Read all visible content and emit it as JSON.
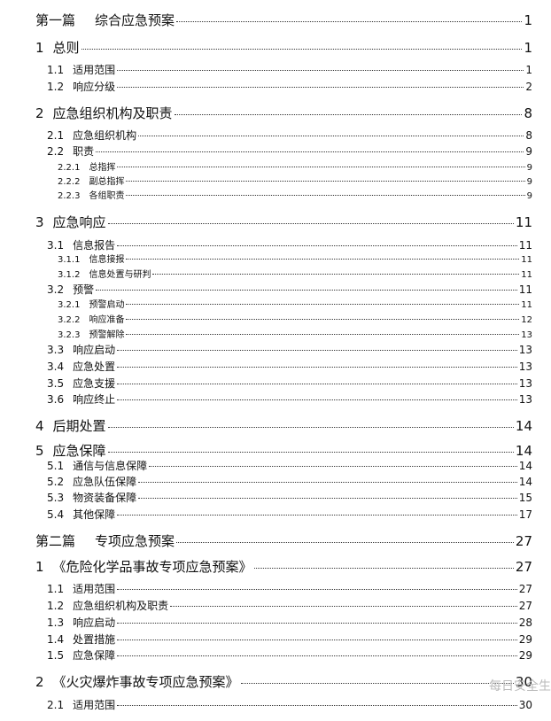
{
  "entries": [
    {
      "number": "第一篇",
      "title": "综合应急预案",
      "page": 1
    },
    {
      "number": "1",
      "title": "总则",
      "page": 1
    },
    {
      "number": "1.1",
      "title": "适用范围",
      "page": 1
    },
    {
      "number": "1.2",
      "title": "响应分级",
      "page": 2
    },
    {
      "number": "2",
      "title": "应急组织机构及职责",
      "page": 8
    },
    {
      "number": "2.1",
      "title": "应急组织机构",
      "page": 8
    },
    {
      "number": "2.2",
      "title": "职责",
      "page": 9
    },
    {
      "number": "2.2.1",
      "title": "总指挥",
      "page": 9
    },
    {
      "number": "2.2.2",
      "title": "副总指挥",
      "page": 9
    },
    {
      "number": "2.2.3",
      "title": "各组职责",
      "page": 9
    },
    {
      "number": "3",
      "title": "应急响应",
      "page": 11
    },
    {
      "number": "3.1",
      "title": "信息报告",
      "page": 11
    },
    {
      "number": "3.1.1",
      "title": "信息接报",
      "page": 11
    },
    {
      "number": "3.1.2",
      "title": "信息处置与研判",
      "page": 11
    },
    {
      "number": "3.2",
      "title": "预警",
      "page": 11
    },
    {
      "number": "3.2.1",
      "title": "预警启动",
      "page": 11
    },
    {
      "number": "3.2.2",
      "title": "响应准备",
      "page": 12
    },
    {
      "number": "3.2.3",
      "title": "预警解除",
      "page": 13
    },
    {
      "number": "3.3",
      "title": "响应启动",
      "page": 13
    },
    {
      "number": "3.4",
      "title": "应急处置",
      "page": 13
    },
    {
      "number": "3.5",
      "title": "应急支援",
      "page": 13
    },
    {
      "number": "3.6",
      "title": "响应终止",
      "page": 13
    },
    {
      "number": "4",
      "title": "后期处置",
      "page": 14
    },
    {
      "number": "5",
      "title": "应急保障",
      "page": 14
    },
    {
      "number": "5.1",
      "title": "通信与信息保障",
      "page": 14
    },
    {
      "number": "5.2",
      "title": "应急队伍保障",
      "page": 14
    },
    {
      "number": "5.3",
      "title": "物资装备保障",
      "page": 15
    },
    {
      "number": "5.4",
      "title": "其他保障",
      "page": 17
    },
    {
      "number": "第二篇",
      "title": "专项应急预案",
      "page": 27
    },
    {
      "number": "1",
      "title": "《危险化学品事故专项应急预案》",
      "page": 27
    },
    {
      "number": "1.1",
      "title": "适用范围",
      "page": 27
    },
    {
      "number": "1.2",
      "title": "应急组织机构及职责",
      "page": 27
    },
    {
      "number": "1.3",
      "title": "响应启动",
      "page": 28
    },
    {
      "number": "1.4",
      "title": "处置措施",
      "page": 29
    },
    {
      "number": "1.5",
      "title": "应急保障",
      "page": 29
    },
    {
      "number": "2",
      "title": "《火灾爆炸事故专项应急预案》",
      "page": 30
    },
    {
      "number": "2.1",
      "title": "适用范围",
      "page": 30
    }
  ],
  "watermark": "每日安全生"
}
